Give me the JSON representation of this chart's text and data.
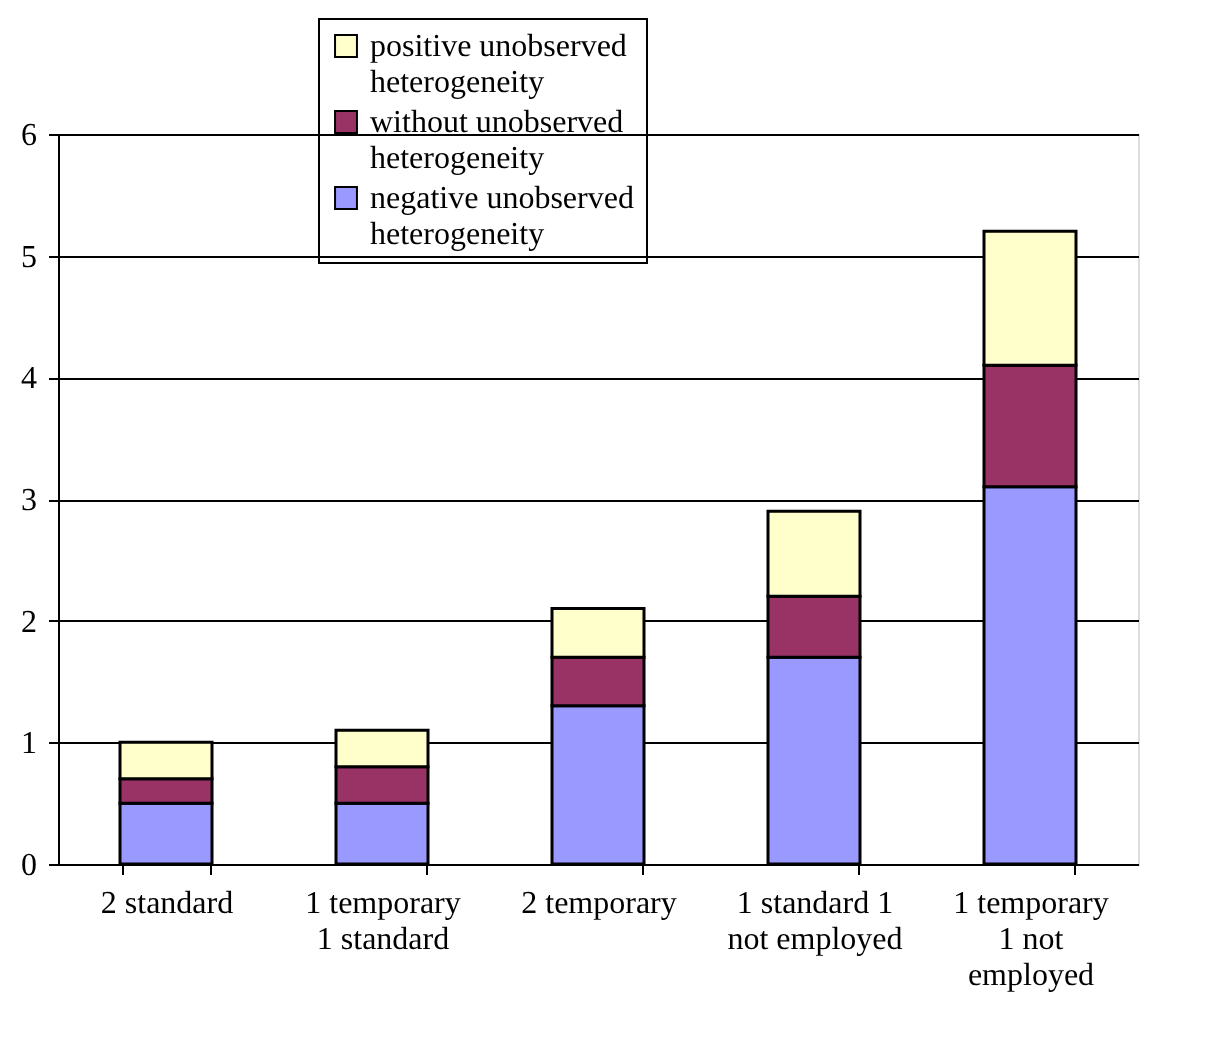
{
  "chart_data": {
    "type": "bar",
    "stacked": true,
    "categories": [
      "2 standard",
      "1 temporary 1 standard",
      "2 temporary",
      "1 standard 1 not employed",
      "1 temporary 1 not employed"
    ],
    "series": [
      {
        "name": "negative unobserved heterogeneity",
        "color": "#9999ff",
        "values": [
          0.5,
          0.5,
          1.3,
          1.7,
          3.1
        ]
      },
      {
        "name": "without unobserved heterogeneity",
        "color": "#993366",
        "values": [
          0.2,
          0.3,
          0.4,
          0.5,
          1.0
        ]
      },
      {
        "name": "positive unobserved heterogeneity",
        "color": "#ffffcc",
        "values": [
          0.3,
          0.3,
          0.4,
          0.7,
          1.1
        ]
      }
    ],
    "ylim": [
      0,
      6
    ],
    "yticks": [
      0,
      1,
      2,
      3,
      4,
      5,
      6
    ],
    "grid": "y",
    "legend": "top"
  }
}
